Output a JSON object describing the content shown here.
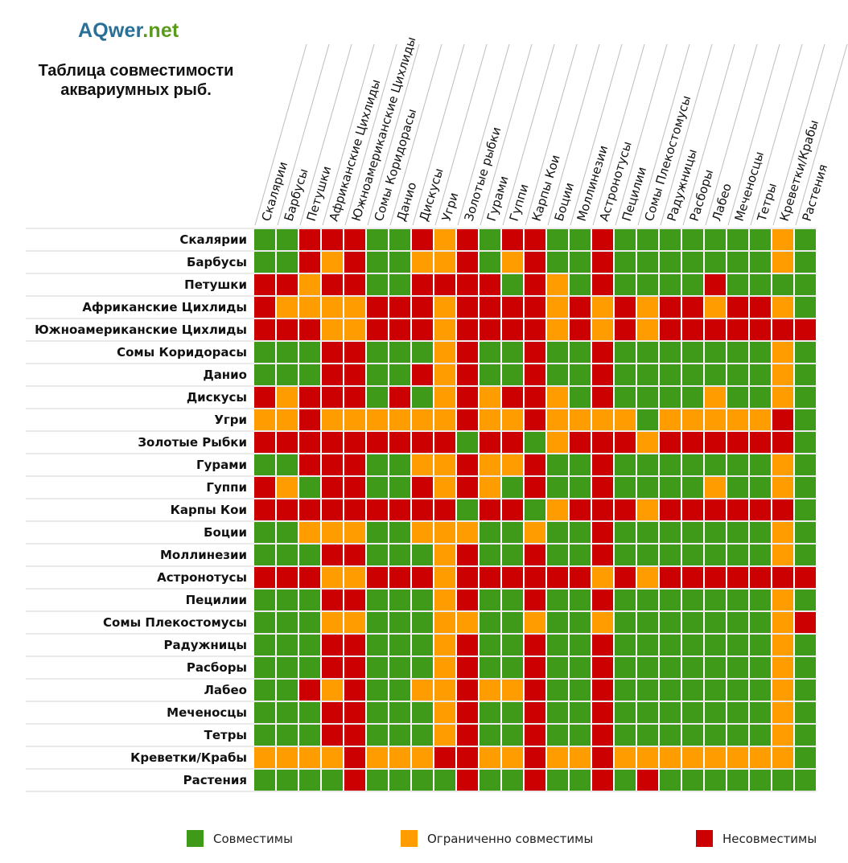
{
  "brand": {
    "part1": "AQwer",
    "part2": ".net"
  },
  "title_line1": "Таблица совместимости",
  "title_line2": "аквариумных рыб.",
  "colors": {
    "C": "#3f9a1a",
    "L": "#ff9d00",
    "N": "#cc0000"
  },
  "legend": [
    {
      "key": "C",
      "label": "Совместимы"
    },
    {
      "key": "L",
      "label": "Ограниченно  совместимы"
    },
    {
      "key": "N",
      "label": "Несовместимы"
    }
  ],
  "chart_data": {
    "type": "heatmap",
    "title": "Таблица совместимости аквариумных рыб.",
    "columns": [
      "Скалярии",
      "Барбусы",
      "Петушки",
      "Африканские Цихлиды",
      "Южноамериканские Цихлиды",
      "Сомы Коридорасы",
      "Данио",
      "Дискусы",
      "Угри",
      "Золотые рыбки",
      "Гурами",
      "Гуппи",
      "Карпы Кои",
      "Боции",
      "Моллинезии",
      "Астронотусы",
      "Пецилии",
      "Сомы Плекостомусы",
      "Радужницы",
      "Расборы",
      "Лабео",
      "Меченосцы",
      "Тетры",
      "Креветки/Крабы",
      "Растения"
    ],
    "rows": [
      "Скалярии",
      "Барбусы",
      "Петушки",
      "Африканские Цихлиды",
      "Южноамериканские Цихлиды",
      "Сомы Коридорасы",
      "Данио",
      "Дискусы",
      "Угри",
      "Золотые Рыбки",
      "Гурами",
      "Гуппи",
      "Карпы Кои",
      "Боции",
      "Моллинезии",
      "Астронотусы",
      "Пецилии",
      "Сомы Плекостомусы",
      "Радужницы",
      "Расборы",
      "Лабео",
      "Меченосцы",
      "Тетры",
      "Креветки/Крабы",
      "Растения"
    ],
    "legend_codes": {
      "C": "Совместимы",
      "L": "Ограниченно совместимы",
      "N": "Несовместимы"
    },
    "cells": [
      "CCNNNCCNLNCNNCCNCCCCCCCLC",
      "CCNLNCCLLNCLNCCNCCCCCCCLC",
      "NNLNNCCNNNNCNLCNCCCCNCCCC",
      "NLLLLNNNLNNNNLNLNLNNLNNLC",
      "NNNLLNNNLNNNNLNLNLNNNNNNN",
      "CCCNNCCCLNCCNCCNCCCCCCCLC",
      "CCCNNCCNLNCCNCCNCCCCCCCLC",
      "NLNNNCNCLNLNNLCNCCCCLCCLC",
      "LLNLLLLLLNLLNLLLLCLLLLLNC",
      "NNNNNNNNNCNNCLNNNLNNNNNNC",
      "CCNNNCCLLNLLNCCNCCCCCCCLC",
      "NLCNNCCNLNLCNCCNCCCCLCCLC",
      "NNNNNNNNNCNNCLNNNLNNNNNNC",
      "CCLLLCCLLLCCLCCNCCCCCCCLC",
      "CCCNNCCCLNCCNCCNCCCCCCCLC",
      "NNNLLNNNLNNNNNNLNLNNNNNNN",
      "CCCNNCCCLNCCNCCNCCCCCCCLC",
      "CCCLLCCCLLCCLCCLCCCCCCCLN",
      "CCCNNCCCLNCCNCCNCCCCCCCLC",
      "CCCNNCCCLNCCNCCNCCCCCCCLC",
      "CCNLNCCLLNLLNCCNCCCCCCCLC",
      "CCCNNCCCLNCCNCCNCCCCCCCLC",
      "CCCNNCCCLNCCNCCNCCCCCCCLC",
      "LLLLNLLLNNLLNLLNLLLLLLLLC",
      "CCCCNCCCCNCCNCCNCNCCCCCCC"
    ]
  }
}
